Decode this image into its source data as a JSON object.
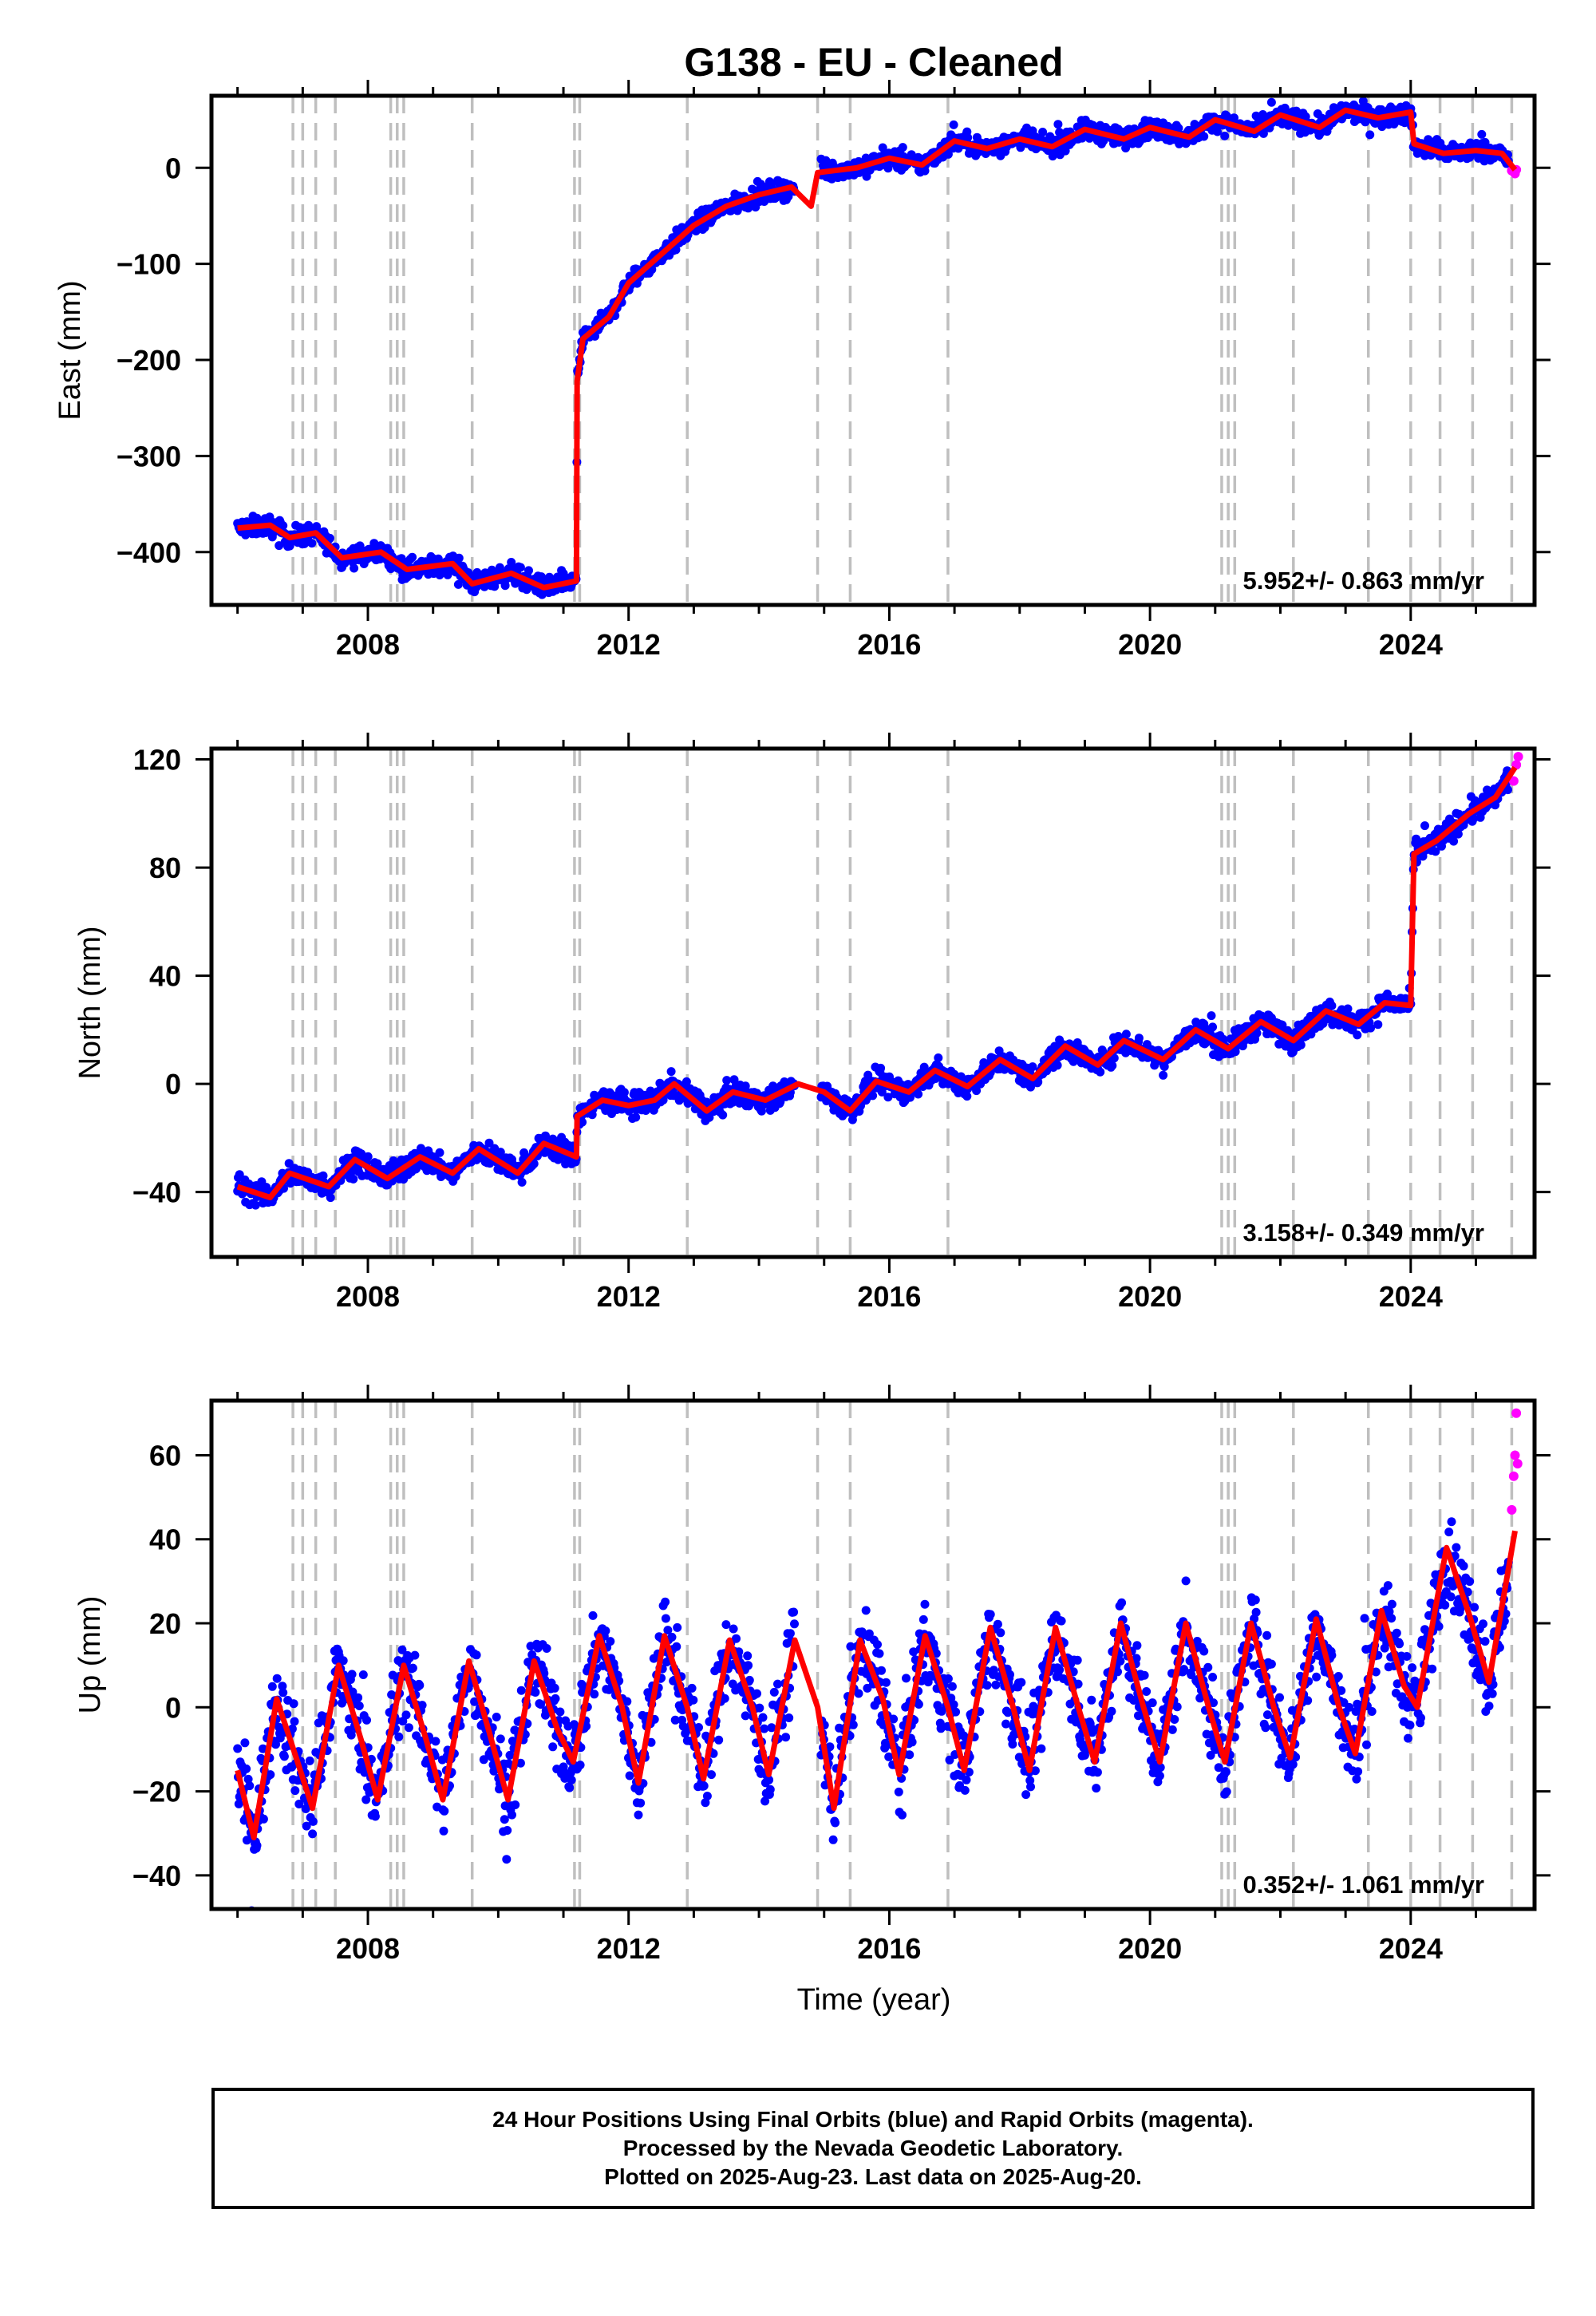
{
  "title": "G138  - EU - Cleaned",
  "colors": {
    "final": "#0000ff",
    "rapid": "#ff00ff",
    "model": "#ff0000",
    "event_line": "#bfbfbf"
  },
  "x_axis": {
    "label": "Time (year)",
    "range": [
      2005.6,
      2025.9
    ],
    "ticks": [
      2008,
      2012,
      2016,
      2020,
      2024
    ],
    "tick_labels": [
      "2008",
      "2012",
      "2016",
      "2020",
      "2024"
    ]
  },
  "event_lines": [
    2006.85,
    2007.0,
    2007.2,
    2007.5,
    2008.35,
    2008.45,
    2008.55,
    2009.6,
    2011.17,
    2011.25,
    2012.9,
    2014.9,
    2015.4,
    2016.9,
    2021.1,
    2021.2,
    2021.3,
    2022.2,
    2023.35,
    2024.0,
    2024.45,
    2024.95,
    2025.55
  ],
  "footer": {
    "line1": "24 Hour Positions Using Final Orbits (blue) and Rapid Orbits (magenta).",
    "line2": "Processed by the Nevada Geodetic Laboratory.",
    "line3": "Plotted on 2025-Aug-23. Last data on 2025-Aug-20."
  },
  "chart_data": [
    {
      "type": "scatter",
      "name": "east",
      "ylabel": "East (mm)",
      "ylim": [
        -455,
        75
      ],
      "yticks": [
        -400,
        -300,
        -200,
        -100,
        0
      ],
      "rate_label": "5.952+/- 0.863 mm/yr",
      "model_knots": [
        [
          2006.0,
          -375
        ],
        [
          2006.5,
          -372
        ],
        [
          2006.8,
          -385
        ],
        [
          2007.2,
          -380
        ],
        [
          2007.6,
          -406
        ],
        [
          2008.2,
          -400
        ],
        [
          2008.6,
          -418
        ],
        [
          2009.3,
          -412
        ],
        [
          2009.6,
          -433
        ],
        [
          2010.2,
          -422
        ],
        [
          2010.7,
          -437
        ],
        [
          2011.2,
          -430
        ],
        [
          2011.21,
          -222
        ],
        [
          2011.3,
          -178
        ],
        [
          2011.7,
          -155
        ],
        [
          2012.0,
          -120
        ],
        [
          2012.5,
          -90
        ],
        [
          2013.0,
          -60
        ],
        [
          2013.5,
          -40
        ],
        [
          2014.0,
          -28
        ],
        [
          2014.5,
          -20
        ],
        [
          2014.8,
          -40
        ],
        [
          2014.9,
          -5
        ],
        [
          2015.5,
          0
        ],
        [
          2016.0,
          10
        ],
        [
          2016.5,
          3
        ],
        [
          2017.0,
          28
        ],
        [
          2017.5,
          20
        ],
        [
          2018.0,
          30
        ],
        [
          2018.5,
          22
        ],
        [
          2019.0,
          40
        ],
        [
          2019.6,
          30
        ],
        [
          2020.0,
          42
        ],
        [
          2020.6,
          32
        ],
        [
          2021.0,
          50
        ],
        [
          2021.6,
          38
        ],
        [
          2022.0,
          55
        ],
        [
          2022.6,
          42
        ],
        [
          2023.0,
          60
        ],
        [
          2023.5,
          52
        ],
        [
          2024.0,
          58
        ],
        [
          2024.05,
          25
        ],
        [
          2024.5,
          15
        ],
        [
          2025.0,
          18
        ],
        [
          2025.4,
          15
        ],
        [
          2025.6,
          -2
        ]
      ],
      "noise": 7,
      "rapid_points": [
        [
          2025.55,
          -3
        ],
        [
          2025.6,
          -6
        ],
        [
          2025.62,
          -2
        ]
      ]
    },
    {
      "type": "scatter",
      "name": "north",
      "ylabel": "North (mm)",
      "ylim": [
        -64,
        124
      ],
      "yticks": [
        -40,
        0,
        40,
        80,
        120
      ],
      "rate_label": "3.158+/- 0.349 mm/yr",
      "model_knots": [
        [
          2006.0,
          -38
        ],
        [
          2006.5,
          -42
        ],
        [
          2006.8,
          -33
        ],
        [
          2007.4,
          -38
        ],
        [
          2007.8,
          -28
        ],
        [
          2008.3,
          -35
        ],
        [
          2008.8,
          -27
        ],
        [
          2009.3,
          -33
        ],
        [
          2009.7,
          -24
        ],
        [
          2010.3,
          -33
        ],
        [
          2010.7,
          -22
        ],
        [
          2011.2,
          -27
        ],
        [
          2011.21,
          -12
        ],
        [
          2011.6,
          -6
        ],
        [
          2012.0,
          -8
        ],
        [
          2012.4,
          -6
        ],
        [
          2012.7,
          0
        ],
        [
          2013.2,
          -10
        ],
        [
          2013.6,
          -3
        ],
        [
          2014.1,
          -6
        ],
        [
          2014.6,
          0
        ],
        [
          2015.0,
          -3
        ],
        [
          2015.4,
          -10
        ],
        [
          2015.8,
          1
        ],
        [
          2016.3,
          -3
        ],
        [
          2016.7,
          5
        ],
        [
          2017.2,
          -1
        ],
        [
          2017.7,
          9
        ],
        [
          2018.2,
          2
        ],
        [
          2018.7,
          14
        ],
        [
          2019.2,
          7
        ],
        [
          2019.6,
          16
        ],
        [
          2020.2,
          9
        ],
        [
          2020.7,
          20
        ],
        [
          2021.2,
          13
        ],
        [
          2021.7,
          23
        ],
        [
          2022.2,
          16
        ],
        [
          2022.7,
          27
        ],
        [
          2023.2,
          22
        ],
        [
          2023.6,
          30
        ],
        [
          2024.0,
          29
        ],
        [
          2024.05,
          85
        ],
        [
          2024.4,
          90
        ],
        [
          2024.9,
          100
        ],
        [
          2025.3,
          106
        ],
        [
          2025.6,
          117
        ]
      ],
      "noise": 3,
      "rapid_points": [
        [
          2025.58,
          112
        ],
        [
          2025.62,
          118
        ],
        [
          2025.65,
          121
        ]
      ]
    },
    {
      "type": "scatter",
      "name": "up",
      "ylabel": "Up (mm)",
      "ylim": [
        -48,
        73
      ],
      "yticks": [
        -40,
        -20,
        0,
        20,
        40,
        60
      ],
      "rate_label": "0.352+/- 1.061 mm/yr",
      "model_knots": [
        [
          2006.0,
          -15
        ],
        [
          2006.25,
          -31
        ],
        [
          2006.6,
          2
        ],
        [
          2006.9,
          -12
        ],
        [
          2007.15,
          -24
        ],
        [
          2007.55,
          10
        ],
        [
          2007.9,
          -8
        ],
        [
          2008.15,
          -22
        ],
        [
          2008.55,
          10
        ],
        [
          2008.9,
          -8
        ],
        [
          2009.15,
          -22
        ],
        [
          2009.55,
          11
        ],
        [
          2009.9,
          -8
        ],
        [
          2010.15,
          -22
        ],
        [
          2010.55,
          11
        ],
        [
          2010.9,
          -5
        ],
        [
          2011.15,
          -13
        ],
        [
          2011.55,
          17
        ],
        [
          2011.9,
          0
        ],
        [
          2012.15,
          -18
        ],
        [
          2012.55,
          17
        ],
        [
          2012.9,
          0
        ],
        [
          2013.15,
          -17
        ],
        [
          2013.55,
          16
        ],
        [
          2013.9,
          0
        ],
        [
          2014.15,
          -16
        ],
        [
          2014.55,
          16
        ],
        [
          2014.9,
          0
        ],
        [
          2015.15,
          -24
        ],
        [
          2015.55,
          16
        ],
        [
          2015.9,
          2
        ],
        [
          2016.15,
          -16
        ],
        [
          2016.55,
          17
        ],
        [
          2016.9,
          0
        ],
        [
          2017.15,
          -15
        ],
        [
          2017.55,
          19
        ],
        [
          2017.9,
          0
        ],
        [
          2018.15,
          -15
        ],
        [
          2018.55,
          19
        ],
        [
          2018.9,
          0
        ],
        [
          2019.15,
          -13
        ],
        [
          2019.55,
          20
        ],
        [
          2019.9,
          0
        ],
        [
          2020.15,
          -13
        ],
        [
          2020.55,
          20
        ],
        [
          2020.9,
          0
        ],
        [
          2021.15,
          -13
        ],
        [
          2021.55,
          20
        ],
        [
          2021.9,
          0
        ],
        [
          2022.15,
          -12
        ],
        [
          2022.55,
          21
        ],
        [
          2022.9,
          0
        ],
        [
          2023.15,
          -11
        ],
        [
          2023.55,
          23
        ],
        [
          2023.9,
          5
        ],
        [
          2024.1,
          0
        ],
        [
          2024.55,
          38
        ],
        [
          2024.9,
          22
        ],
        [
          2025.2,
          6
        ],
        [
          2025.6,
          42
        ]
      ],
      "noise": 7,
      "rapid_points": [
        [
          2025.55,
          47
        ],
        [
          2025.58,
          55
        ],
        [
          2025.6,
          60
        ],
        [
          2025.62,
          70
        ],
        [
          2025.64,
          58
        ]
      ]
    }
  ]
}
